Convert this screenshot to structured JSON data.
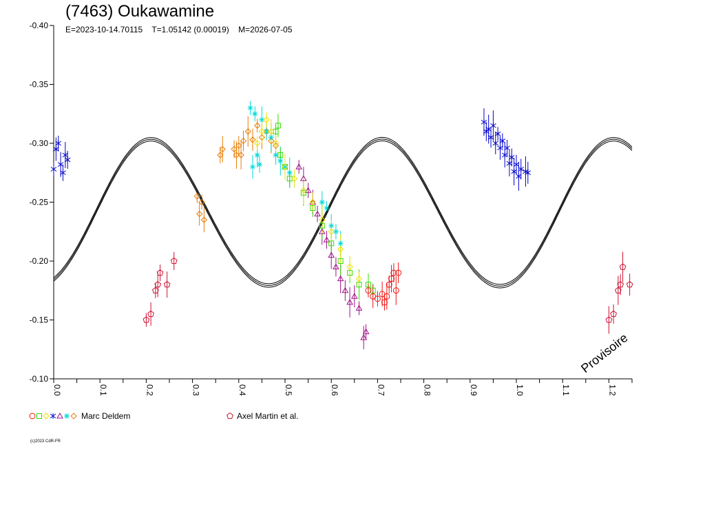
{
  "title": "(7463) Oukawamine",
  "subtitle": {
    "epoch": "E=2023-10-14.70115",
    "period": "T=1.05142 (0.00019)",
    "modified": "M=2026-07-05"
  },
  "watermark": "Provisoire",
  "copyright": "(c)2023 CdR-FR",
  "legend": [
    {
      "symbols": "○□◇⌖△✶✧",
      "label": "Marc Deldem"
    },
    {
      "symbols": "⬠",
      "label": "Axel Martin et al."
    }
  ],
  "chart_data": {
    "type": "scatter",
    "x_axis": {
      "min": 0.0,
      "max": 1.25,
      "ticks": [
        "0.0",
        "0.1",
        "0.2",
        "0.3",
        "0.4",
        "0.5",
        "0.6",
        "0.7",
        "0.8",
        "0.9",
        "1.0",
        "1.1",
        "1.2"
      ]
    },
    "y_axis": {
      "min": -0.4,
      "max": -0.1,
      "inverted": true,
      "ticks": [
        "-0.40",
        "-0.35",
        "-0.30",
        "-0.25",
        "-0.20",
        "-0.15",
        "-0.10"
      ]
    },
    "model_curve": {
      "mean": -0.24,
      "harmonics": [
        {
          "k": 2,
          "a": 0.0553,
          "b": -0.0285
        },
        {
          "k": 1,
          "a": 0.0003,
          "b": 0.0
        },
        {
          "k": 4,
          "a": 0.0,
          "b": 0.0015
        }
      ]
    },
    "series": [
      {
        "name": "Marc Deldem",
        "symbol": "star",
        "color": "#0000cc",
        "points": [
          [
            0.0,
            -0.278
          ],
          [
            0.005,
            -0.295
          ],
          [
            0.01,
            -0.3
          ],
          [
            0.015,
            -0.282
          ],
          [
            0.02,
            -0.275
          ],
          [
            0.025,
            -0.29
          ],
          [
            0.03,
            -0.286
          ],
          [
            0.93,
            -0.318
          ],
          [
            0.935,
            -0.31
          ],
          [
            0.94,
            -0.312
          ],
          [
            0.945,
            -0.305
          ],
          [
            0.95,
            -0.315
          ],
          [
            0.955,
            -0.3
          ],
          [
            0.96,
            -0.308
          ],
          [
            0.965,
            -0.296
          ],
          [
            0.97,
            -0.302
          ],
          [
            0.975,
            -0.29
          ],
          [
            0.98,
            -0.296
          ],
          [
            0.985,
            -0.283
          ],
          [
            0.99,
            -0.288
          ],
          [
            0.995,
            -0.276
          ],
          [
            1.0,
            -0.282
          ],
          [
            1.005,
            -0.272
          ],
          [
            1.01,
            -0.278
          ],
          [
            1.02,
            -0.276
          ],
          [
            1.025,
            -0.275
          ]
        ]
      },
      {
        "name": "Marc Deldem",
        "symbol": "diamond",
        "color": "#e87b00",
        "points": [
          [
            0.31,
            -0.255
          ],
          [
            0.315,
            -0.24
          ],
          [
            0.32,
            -0.25
          ],
          [
            0.325,
            -0.235
          ],
          [
            0.36,
            -0.29
          ],
          [
            0.365,
            -0.295
          ],
          [
            0.39,
            -0.295
          ],
          [
            0.395,
            -0.29
          ],
          [
            0.4,
            -0.298
          ],
          [
            0.405,
            -0.29
          ],
          [
            0.41,
            -0.302
          ],
          [
            0.42,
            -0.31
          ],
          [
            0.43,
            -0.303
          ],
          [
            0.44,
            -0.315
          ],
          [
            0.45,
            -0.305
          ],
          [
            0.46,
            -0.31
          ],
          [
            0.47,
            -0.302
          ],
          [
            0.48,
            -0.298
          ]
        ]
      },
      {
        "name": "Marc Deldem",
        "symbol": "cross",
        "color": "#00d8d8",
        "points": [
          [
            0.425,
            -0.33
          ],
          [
            0.43,
            -0.28
          ],
          [
            0.435,
            -0.325
          ],
          [
            0.44,
            -0.29
          ],
          [
            0.445,
            -0.282
          ],
          [
            0.45,
            -0.32
          ],
          [
            0.46,
            -0.31
          ],
          [
            0.47,
            -0.305
          ],
          [
            0.48,
            -0.29
          ],
          [
            0.49,
            -0.285
          ],
          [
            0.5,
            -0.28
          ],
          [
            0.51,
            -0.275
          ],
          [
            0.58,
            -0.25
          ],
          [
            0.59,
            -0.245
          ],
          [
            0.6,
            -0.23
          ],
          [
            0.61,
            -0.225
          ],
          [
            0.62,
            -0.215
          ]
        ]
      },
      {
        "name": "Marc Deldem",
        "symbol": "triangle",
        "color": "#a0108a",
        "points": [
          [
            0.53,
            -0.28
          ],
          [
            0.54,
            -0.27
          ],
          [
            0.55,
            -0.26
          ],
          [
            0.56,
            -0.25
          ],
          [
            0.57,
            -0.24
          ],
          [
            0.58,
            -0.225
          ],
          [
            0.59,
            -0.218
          ],
          [
            0.6,
            -0.205
          ],
          [
            0.61,
            -0.195
          ],
          [
            0.62,
            -0.185
          ],
          [
            0.63,
            -0.175
          ],
          [
            0.64,
            -0.165
          ],
          [
            0.65,
            -0.17
          ],
          [
            0.66,
            -0.16
          ],
          [
            0.67,
            -0.135
          ],
          [
            0.675,
            -0.14
          ]
        ]
      },
      {
        "name": "Marc Deldem",
        "symbol": "square",
        "color": "#30dd00",
        "points": [
          [
            0.48,
            -0.31
          ],
          [
            0.485,
            -0.315
          ],
          [
            0.49,
            -0.29
          ],
          [
            0.5,
            -0.28
          ],
          [
            0.51,
            -0.27
          ],
          [
            0.54,
            -0.258
          ],
          [
            0.56,
            -0.245
          ],
          [
            0.58,
            -0.23
          ],
          [
            0.6,
            -0.215
          ],
          [
            0.62,
            -0.2
          ],
          [
            0.64,
            -0.19
          ],
          [
            0.66,
            -0.18
          ],
          [
            0.68,
            -0.18
          ],
          [
            0.69,
            -0.175
          ]
        ]
      },
      {
        "name": "Marc Deldem",
        "symbol": "diamond",
        "color": "#f0e000",
        "points": [
          [
            0.44,
            -0.3
          ],
          [
            0.45,
            -0.31
          ],
          [
            0.46,
            -0.32
          ],
          [
            0.47,
            -0.31
          ],
          [
            0.48,
            -0.3
          ],
          [
            0.5,
            -0.28
          ],
          [
            0.52,
            -0.27
          ],
          [
            0.54,
            -0.26
          ],
          [
            0.56,
            -0.25
          ],
          [
            0.58,
            -0.235
          ],
          [
            0.6,
            -0.225
          ],
          [
            0.62,
            -0.21
          ],
          [
            0.64,
            -0.195
          ],
          [
            0.66,
            -0.185
          ]
        ]
      },
      {
        "name": "Marc Deldem",
        "symbol": "circle",
        "color": "#ee1010",
        "points": [
          [
            0.68,
            -0.175
          ],
          [
            0.69,
            -0.17
          ],
          [
            0.7,
            -0.168
          ],
          [
            0.71,
            -0.172
          ],
          [
            0.715,
            -0.165
          ],
          [
            0.72,
            -0.17
          ],
          [
            0.725,
            -0.18
          ],
          [
            0.73,
            -0.185
          ],
          [
            0.735,
            -0.19
          ],
          [
            0.74,
            -0.175
          ],
          [
            0.745,
            -0.19
          ]
        ]
      },
      {
        "name": "Axel Martin et al.",
        "symbol": "pentagon",
        "color": "#cc1030",
        "points": [
          [
            0.2,
            -0.15
          ],
          [
            0.21,
            -0.155
          ],
          [
            0.22,
            -0.175
          ],
          [
            0.225,
            -0.18
          ],
          [
            0.23,
            -0.19
          ],
          [
            0.245,
            -0.18
          ],
          [
            0.26,
            -0.2
          ],
          [
            1.2,
            -0.15
          ],
          [
            1.21,
            -0.155
          ],
          [
            1.22,
            -0.175
          ],
          [
            1.225,
            -0.18
          ],
          [
            1.23,
            -0.195
          ],
          [
            1.245,
            -0.18
          ]
        ]
      }
    ]
  }
}
